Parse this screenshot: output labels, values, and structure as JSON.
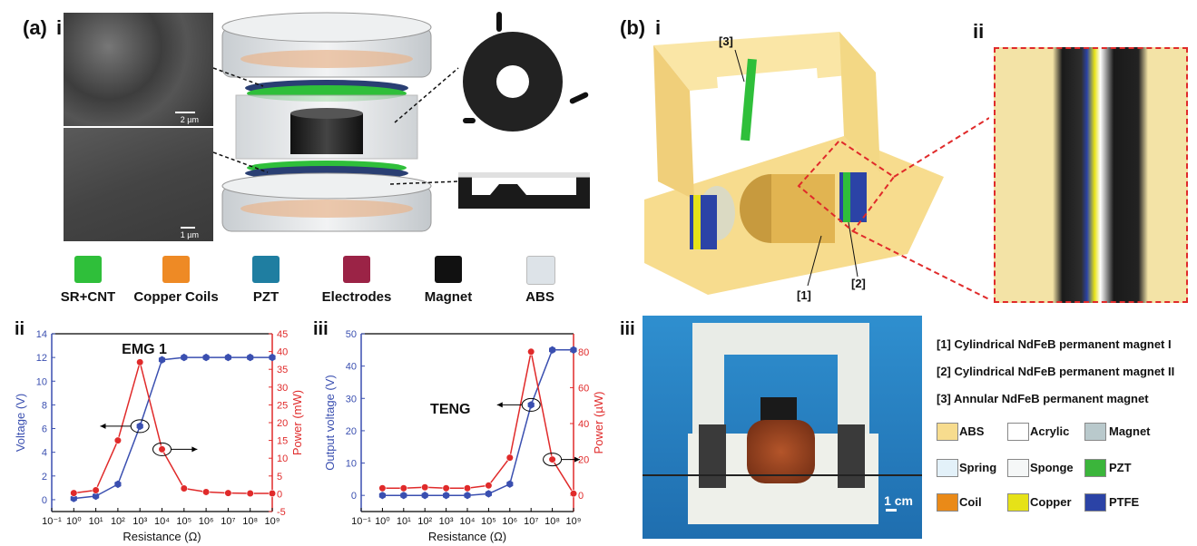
{
  "panel_a": {
    "label": "(a)",
    "sub_i": "i",
    "sem_scale_top": "2 µm",
    "sem_scale_bottom": "1 µm",
    "materials": [
      {
        "label": "SR+CNT",
        "color": "#2fbf3a"
      },
      {
        "label": "Copper Coils",
        "color": "#ee8a25"
      },
      {
        "label": "PZT",
        "color": "#1f7ea1"
      },
      {
        "label": "Electrodes",
        "color": "#9b2346"
      },
      {
        "label": "Magnet",
        "color": "#111111"
      },
      {
        "label": "ABS",
        "color": "#dde3e8"
      }
    ]
  },
  "panel_b": {
    "label": "(b)",
    "sub_i": "i",
    "sub_ii": "ii",
    "sub_iii": "iii",
    "callouts": [
      "[1]",
      "[2]",
      "[3]"
    ],
    "scale": "1 cm",
    "notes": [
      "[1] Cylindrical NdFeB permanent magnet I",
      "[2] Cylindrical NdFeB permanent magnet II",
      "[3] Annular NdFeB permanent magnet"
    ],
    "legend": [
      {
        "label": "ABS",
        "color": "#f7dc8e"
      },
      {
        "label": "Acrylic",
        "color": "#ffffff"
      },
      {
        "label": "Magnet",
        "color": "#b9c9cc"
      },
      {
        "label": "Spring",
        "color": "#e3f1f9"
      },
      {
        "label": "Sponge",
        "color": "#f5f7f7"
      },
      {
        "label": "PZT",
        "color": "#3bb53b"
      },
      {
        "label": "Coil",
        "color": "#ea8a18"
      },
      {
        "label": "Copper",
        "color": "#e6e218"
      },
      {
        "label": "PTFE",
        "color": "#2b43a6"
      }
    ]
  },
  "chart_data": [
    {
      "type": "line",
      "panel": "ii",
      "title": "EMG 1",
      "xlabel": "Resistance (Ω)",
      "ylabel": "Voltage (V)",
      "y2label": "Power (mW)",
      "x_ticks": [
        "10⁻¹",
        "10⁰",
        "10¹",
        "10²",
        "10³",
        "10⁴",
        "10⁵",
        "10⁶",
        "10⁷",
        "10⁸",
        "10⁹"
      ],
      "x_exp_range": [
        -1,
        9
      ],
      "ylim": [
        -1,
        14
      ],
      "y_ticks": [
        "0",
        "2",
        "4",
        "6",
        "8",
        "10",
        "12",
        "14"
      ],
      "y2lim": [
        -5,
        45
      ],
      "y2_ticks": [
        "-5",
        "0",
        "5",
        "10",
        "15",
        "20",
        "25",
        "30",
        "35",
        "40",
        "45"
      ],
      "series": [
        {
          "axis": "left",
          "color": "#3a4fb0",
          "marker": "hexagon",
          "x_exp": [
            0,
            1,
            2,
            3,
            4,
            5,
            6,
            7,
            8,
            9
          ],
          "y": [
            0.1,
            0.3,
            1.3,
            6.2,
            11.8,
            12,
            12,
            12,
            12,
            12
          ]
        },
        {
          "axis": "right",
          "color": "#e02a2a",
          "marker": "circle",
          "x_exp": [
            0,
            1,
            2,
            3,
            4,
            5,
            6,
            7,
            8,
            9
          ],
          "y": [
            0.2,
            1,
            15,
            37,
            12.5,
            1.5,
            0.5,
            0.2,
            0.1,
            0.1
          ]
        }
      ]
    },
    {
      "type": "line",
      "panel": "iii",
      "title": "TENG",
      "xlabel": "Resistance (Ω)",
      "ylabel": "Output voltage (V)",
      "y2label": "Power (µW)",
      "x_ticks": [
        "10⁻¹",
        "10⁰",
        "10¹",
        "10²",
        "10³",
        "10⁴",
        "10⁵",
        "10⁶",
        "10⁷",
        "10⁸",
        "10⁹"
      ],
      "x_exp_range": [
        -1,
        9
      ],
      "ylim": [
        -5,
        50
      ],
      "y_ticks": [
        "0",
        "10",
        "20",
        "30",
        "40",
        "50"
      ],
      "y2lim": [
        -9,
        90
      ],
      "y2_ticks": [
        "0",
        "20",
        "40",
        "60",
        "80"
      ],
      "series": [
        {
          "axis": "left",
          "color": "#3a4fb0",
          "marker": "hexagon",
          "x_exp": [
            0,
            1,
            2,
            3,
            4,
            5,
            6,
            7,
            8,
            9
          ],
          "y": [
            0,
            0,
            0,
            0,
            0,
            0.5,
            3.5,
            28,
            45,
            45
          ]
        },
        {
          "axis": "right",
          "color": "#e02a2a",
          "marker": "circle",
          "x_exp": [
            0,
            1,
            2,
            3,
            4,
            5,
            6,
            7,
            8,
            9
          ],
          "y": [
            4,
            4,
            4.5,
            4,
            4,
            5.5,
            21,
            80,
            20,
            1
          ]
        }
      ]
    }
  ]
}
